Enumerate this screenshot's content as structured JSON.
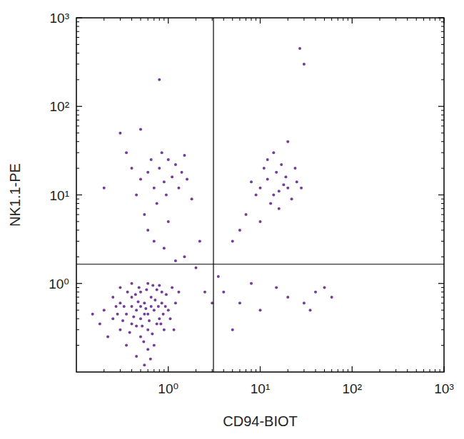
{
  "chart_data": {
    "type": "scatter",
    "log": true,
    "color": "#5b1a86",
    "marker": "dot",
    "x_label": "CD94-BIOT",
    "y_label": "NK1.1-PE",
    "xlim": [
      0.1,
      1000
    ],
    "ylim": [
      0.1,
      1000
    ],
    "xticks": [
      {
        "value": 1,
        "label": "10⁰"
      },
      {
        "value": 10,
        "label": "10¹"
      },
      {
        "value": 100,
        "label": "10²"
      },
      {
        "value": 1000,
        "label": "10³"
      }
    ],
    "yticks": [
      {
        "value": 1,
        "label": "10⁰"
      },
      {
        "value": 10,
        "label": "10¹"
      },
      {
        "value": 100,
        "label": "10²"
      },
      {
        "value": 1000,
        "label": "10³"
      }
    ],
    "quadrant": {
      "x": 3.1,
      "y": 1.65
    },
    "x": [
      0.2,
      0.25,
      0.3,
      0.3,
      0.35,
      0.4,
      0.4,
      0.45,
      0.5,
      0.5,
      0.5,
      0.55,
      0.6,
      0.6,
      0.65,
      0.7,
      0.7,
      0.75,
      0.8,
      0.85,
      0.9,
      0.95,
      1.0,
      1.1,
      1.2,
      0.45,
      0.55,
      0.6,
      0.35,
      0.3,
      0.4,
      0.6,
      0.8,
      0.25,
      0.18,
      0.22,
      0.28,
      0.33,
      0.38,
      0.42,
      0.47,
      0.52,
      0.57,
      0.62,
      0.67,
      0.72,
      0.78,
      0.83,
      0.88,
      0.93,
      1.05,
      1.15,
      0.48,
      0.58,
      0.68,
      0.44,
      0.36,
      0.54,
      0.64,
      0.5,
      0.45,
      0.4,
      0.55,
      0.65,
      0.75,
      0.85,
      0.32,
      0.27,
      0.15,
      1.3,
      0.5,
      0.6,
      0.7,
      0.8,
      0.9,
      1.0,
      1.1,
      1.2,
      1.4,
      0.45,
      0.65,
      0.75,
      0.55,
      0.85,
      1.3,
      1.6,
      0.4,
      0.35,
      0.3,
      0.5,
      0.8,
      0.6,
      0.7,
      0.9,
      1.0,
      1.5,
      0.95,
      0.2,
      1.8,
      2.2,
      10,
      12,
      14,
      15,
      16,
      18,
      20,
      22,
      11,
      13,
      17,
      19,
      25,
      9,
      8,
      12,
      14,
      20,
      7,
      6,
      5,
      10,
      24,
      28,
      16,
      30,
      27,
      4,
      6,
      8,
      10,
      15,
      20,
      30,
      40,
      50,
      5,
      35,
      60,
      3.5,
      2,
      1.5,
      1.2,
      2.5,
      3
    ],
    "values": [
      0.5,
      0.4,
      0.3,
      0.6,
      0.45,
      0.35,
      0.7,
      0.5,
      0.4,
      0.25,
      0.8,
      0.6,
      0.45,
      0.3,
      0.7,
      0.5,
      0.2,
      0.85,
      0.4,
      0.6,
      0.3,
      0.75,
      0.5,
      0.9,
      0.6,
      0.15,
      0.12,
      0.18,
      0.2,
      0.9,
      1.0,
      1.0,
      0.95,
      0.7,
      0.35,
      0.25,
      0.45,
      0.55,
      0.28,
      0.42,
      0.62,
      0.33,
      0.52,
      0.38,
      0.27,
      0.65,
      0.55,
      0.35,
      0.45,
      0.55,
      0.4,
      0.3,
      0.9,
      0.85,
      0.95,
      0.75,
      0.8,
      0.22,
      0.14,
      0.55,
      0.33,
      0.55,
      0.45,
      0.55,
      0.35,
      0.8,
      0.38,
      0.55,
      0.45,
      0.8,
      15,
      18,
      12,
      20,
      14,
      25,
      16,
      22,
      18,
      10,
      25,
      8,
      6,
      30,
      12,
      15,
      20,
      30,
      50,
      55,
      200,
      4,
      3,
      2.5,
      5,
      28,
      10,
      12,
      9,
      3,
      12,
      15,
      10,
      18,
      11,
      13,
      12,
      9,
      20,
      8,
      22,
      16,
      14,
      10,
      14,
      25,
      30,
      40,
      6,
      4,
      3,
      5,
      20,
      12,
      7,
      300,
      450,
      0.8,
      0.6,
      1.0,
      0.5,
      0.9,
      0.7,
      0.6,
      0.8,
      0.9,
      0.3,
      0.5,
      0.7,
      1.2,
      1.5,
      2,
      1.8,
      0.8,
      0.6
    ]
  }
}
